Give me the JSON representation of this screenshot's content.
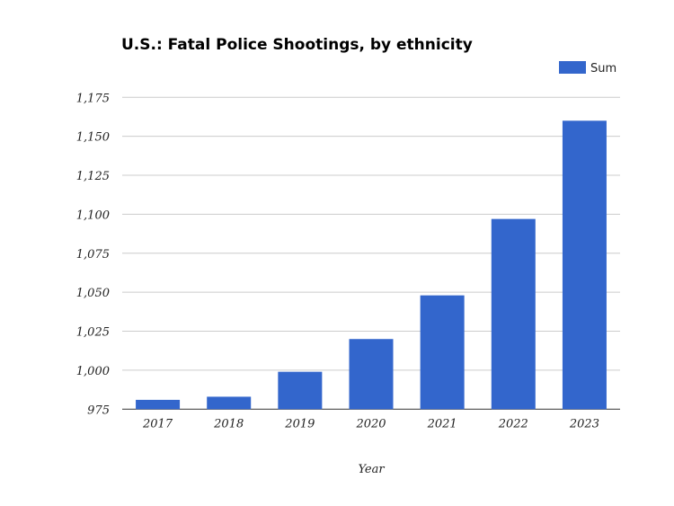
{
  "chart_data": {
    "type": "bar",
    "title": "U.S.: Fatal Police Shootings, by ethnicity",
    "xlabel": "Year",
    "ylabel": "",
    "categories": [
      "2017",
      "2018",
      "2019",
      "2020",
      "2021",
      "2022",
      "2023"
    ],
    "series": [
      {
        "name": "Sum",
        "values": [
          981,
          983,
          999,
          1020,
          1048,
          1097,
          1160
        ],
        "color": "#3366cc"
      }
    ],
    "ylim": [
      975,
      1175
    ],
    "yticks": [
      975,
      1000,
      1025,
      1050,
      1075,
      1100,
      1125,
      1150,
      1175
    ],
    "ytick_labels": [
      "975",
      "1,000",
      "1,025",
      "1,050",
      "1,075",
      "1,100",
      "1,125",
      "1,150",
      "1,175"
    ],
    "grid": true,
    "legend_position": "top-right"
  }
}
